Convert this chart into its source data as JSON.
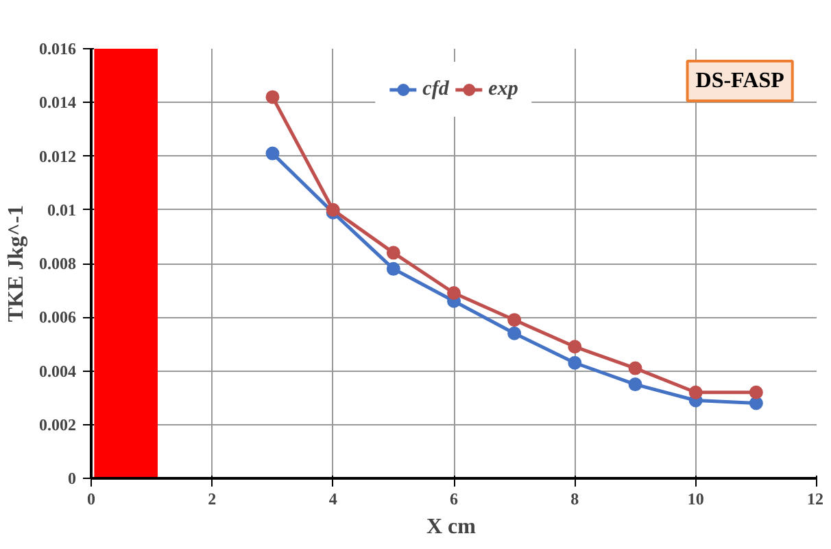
{
  "chart_data": {
    "type": "line",
    "xlabel": "X  cm",
    "ylabel": "TKE Jkg^-1",
    "annotations": [
      "DS-FASP"
    ],
    "x": [
      3,
      4,
      5,
      6,
      7,
      8,
      9,
      10,
      11
    ],
    "series": [
      {
        "name": "cfd",
        "color": "#4472c4",
        "values": [
          0.0121,
          0.0099,
          0.0078,
          0.0066,
          0.0054,
          0.0043,
          0.0035,
          0.0029,
          0.0028
        ]
      },
      {
        "name": "exp",
        "color": "#c0504d",
        "values": [
          0.0142,
          0.01,
          0.0084,
          0.0069,
          0.0059,
          0.0049,
          0.0041,
          0.0032,
          0.0032
        ]
      }
    ],
    "bands": [
      {
        "axis": "x",
        "from": 0.05,
        "to": 1.1,
        "color": "#ff0000"
      }
    ],
    "xlim": [
      0,
      12
    ],
    "xticks": [
      0,
      2,
      4,
      6,
      8,
      10,
      12
    ],
    "ylim": [
      0,
      0.016
    ],
    "yticks": [
      0,
      0.002,
      0.004,
      0.006,
      0.008,
      0.01,
      0.012,
      0.014,
      0.016
    ],
    "grid": true,
    "legend": "top",
    "marker": "circle",
    "line_style": "solid"
  }
}
